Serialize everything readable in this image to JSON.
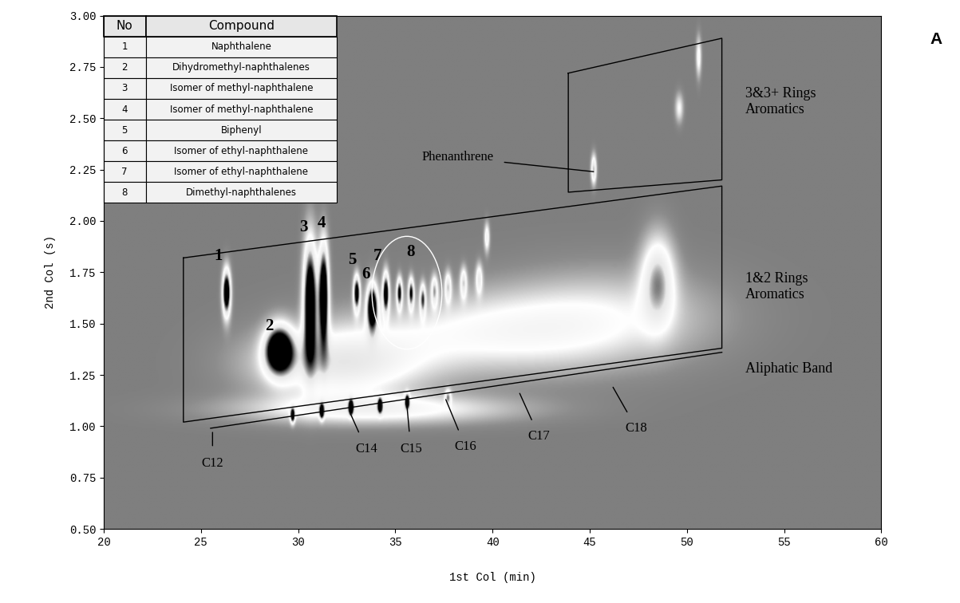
{
  "chart_data": {
    "type": "contour",
    "panel_label": "A",
    "x_label": "1st Col (min)",
    "y_label": "2nd Col (s)",
    "xlim": [
      20,
      60
    ],
    "ylim": [
      0.5,
      3.0
    ],
    "xticks": [
      20,
      25,
      30,
      35,
      40,
      45,
      50,
      55,
      60
    ],
    "yticks": [
      {
        "value": 0.5,
        "label": "0.50"
      },
      {
        "value": 0.75,
        "label": "0.75"
      },
      {
        "value": 1.0,
        "label": "1.00"
      },
      {
        "value": 1.25,
        "label": "1.25"
      },
      {
        "value": 1.5,
        "label": "1.50"
      },
      {
        "value": 1.75,
        "label": "1.75"
      },
      {
        "value": 2.0,
        "label": "2.00"
      },
      {
        "value": 2.25,
        "label": "2.25"
      },
      {
        "value": 2.5,
        "label": "2.50"
      },
      {
        "value": 2.75,
        "label": "2.75"
      },
      {
        "value": 3.0,
        "label": "3.00"
      }
    ],
    "table": {
      "header": [
        "No",
        "Compound"
      ],
      "rows": [
        [
          "1",
          "Naphthalene"
        ],
        [
          "2",
          "Dihydromethyl-naphthalenes"
        ],
        [
          "3",
          "Isomer of methyl-naphthalene"
        ],
        [
          "4",
          "Isomer of methyl-naphthalene"
        ],
        [
          "5",
          "Biphenyl"
        ],
        [
          "6",
          "Isomer of ethyl-naphthalene"
        ],
        [
          "7",
          "Isomer of ethyl-naphthalene"
        ],
        [
          "8",
          "Dimethyl-naphthalenes"
        ]
      ]
    },
    "peaks": [
      {
        "x": 26.3,
        "y": 1.65,
        "sx": 0.15,
        "sy": 0.08,
        "intensity": 1.0
      },
      {
        "x": 29.0,
        "y": 1.37,
        "sx": 0.5,
        "sy": 0.08,
        "intensity": 1.0
      },
      {
        "x": 30.6,
        "y": 1.62,
        "sx": 0.25,
        "sy": 0.2,
        "intensity": 1.0
      },
      {
        "x": 31.3,
        "y": 1.65,
        "sx": 0.18,
        "sy": 0.17,
        "intensity": 1.0
      },
      {
        "x": 33.0,
        "y": 1.65,
        "sx": 0.12,
        "sy": 0.06,
        "intensity": 0.85
      },
      {
        "x": 33.8,
        "y": 1.58,
        "sx": 0.2,
        "sy": 0.08,
        "intensity": 0.95
      },
      {
        "x": 34.5,
        "y": 1.65,
        "sx": 0.12,
        "sy": 0.07,
        "intensity": 0.85
      },
      {
        "x": 35.2,
        "y": 1.65,
        "sx": 0.1,
        "sy": 0.05,
        "intensity": 0.75
      },
      {
        "x": 35.8,
        "y": 1.65,
        "sx": 0.1,
        "sy": 0.05,
        "intensity": 0.7
      },
      {
        "x": 36.4,
        "y": 1.62,
        "sx": 0.1,
        "sy": 0.05,
        "intensity": 0.6
      },
      {
        "x": 37.0,
        "y": 1.66,
        "sx": 0.12,
        "sy": 0.05,
        "intensity": 0.5
      },
      {
        "x": 37.7,
        "y": 1.68,
        "sx": 0.12,
        "sy": 0.05,
        "intensity": 0.45
      },
      {
        "x": 38.5,
        "y": 1.7,
        "sx": 0.12,
        "sy": 0.05,
        "intensity": 0.45
      },
      {
        "x": 39.3,
        "y": 1.72,
        "sx": 0.12,
        "sy": 0.05,
        "intensity": 0.4
      },
      {
        "x": 39.7,
        "y": 1.92,
        "sx": 0.1,
        "sy": 0.05,
        "intensity": 0.4
      },
      {
        "x": 32.0,
        "y": 1.3,
        "sx": 3.0,
        "sy": 0.12,
        "intensity": 0.45
      },
      {
        "x": 40.0,
        "y": 1.45,
        "sx": 5.0,
        "sy": 0.14,
        "intensity": 0.3
      },
      {
        "x": 46.0,
        "y": 1.55,
        "sx": 4.0,
        "sy": 0.16,
        "intensity": 0.2
      },
      {
        "x": 48.5,
        "y": 1.72,
        "sx": 0.6,
        "sy": 0.15,
        "intensity": 0.5
      },
      {
        "x": 45.2,
        "y": 2.25,
        "sx": 0.1,
        "sy": 0.05,
        "intensity": 0.55
      },
      {
        "x": 49.6,
        "y": 2.55,
        "sx": 0.15,
        "sy": 0.05,
        "intensity": 0.3
      },
      {
        "x": 50.6,
        "y": 2.8,
        "sx": 0.1,
        "sy": 0.07,
        "intensity": 0.35
      },
      {
        "x": 34.0,
        "y": 1.08,
        "sx": 5.0,
        "sy": 0.05,
        "intensity": 0.35
      },
      {
        "x": 29.7,
        "y": 1.05,
        "sx": 0.08,
        "sy": 0.025,
        "intensity": 0.8
      },
      {
        "x": 31.2,
        "y": 1.07,
        "sx": 0.08,
        "sy": 0.025,
        "intensity": 0.8
      },
      {
        "x": 32.7,
        "y": 1.09,
        "sx": 0.08,
        "sy": 0.025,
        "intensity": 0.85
      },
      {
        "x": 34.2,
        "y": 1.1,
        "sx": 0.08,
        "sy": 0.025,
        "intensity": 0.75
      },
      {
        "x": 35.6,
        "y": 1.12,
        "sx": 0.08,
        "sy": 0.025,
        "intensity": 0.75
      },
      {
        "x": 37.7,
        "y": 1.14,
        "sx": 0.1,
        "sy": 0.025,
        "intensity": 0.45
      }
    ],
    "compound_labels": [
      {
        "label": "1",
        "x": 25.9,
        "y": 1.79
      },
      {
        "label": "2",
        "x": 28.5,
        "y": 1.45
      },
      {
        "label": "3",
        "x": 30.3,
        "y": 1.93
      },
      {
        "label": "4",
        "x": 31.2,
        "y": 1.95
      },
      {
        "label": "5",
        "x": 32.8,
        "y": 1.77
      },
      {
        "label": "6",
        "x": 33.5,
        "y": 1.7
      },
      {
        "label": "7",
        "x": 34.1,
        "y": 1.79
      },
      {
        "label": "8",
        "x": 35.8,
        "y": 1.81
      }
    ],
    "group_outline": {
      "x": 35.6,
      "y": 1.65,
      "width": 3.6,
      "height": 0.55
    },
    "regions": [
      {
        "label": "3&3+ Rings\nAromatics",
        "x": [
          43.9,
          51.8,
          51.8,
          43.9
        ],
        "y": [
          2.72,
          2.89,
          2.2,
          2.14
        ],
        "label_x": 53.0,
        "label_y": 2.58
      },
      {
        "label": "1&2 Rings\nAromatics",
        "x": [
          24.1,
          51.8,
          51.8,
          24.1
        ],
        "y": [
          1.82,
          2.17,
          1.38,
          1.02
        ],
        "label_x": 53.0,
        "label_y": 1.68
      }
    ],
    "band": {
      "label": "Aliphatic Band",
      "x": [
        25.5,
        51.8
      ],
      "y": [
        0.99,
        1.36
      ],
      "label_x": 53.0,
      "label_y": 1.28
    },
    "annotations": [
      {
        "text": "Phenanthrene",
        "x": 45.2,
        "y": 2.24,
        "text_x": 38.2,
        "text_y": 2.31
      },
      {
        "text": "C12",
        "x": 25.6,
        "y": 0.97,
        "text_x": 25.6,
        "text_y": 0.82
      },
      {
        "text": "C14",
        "x": 32.7,
        "y": 1.06,
        "text_x": 33.5,
        "text_y": 0.89
      },
      {
        "text": "C15",
        "x": 35.6,
        "y": 1.1,
        "text_x": 35.8,
        "text_y": 0.89
      },
      {
        "text": "C16",
        "x": 37.6,
        "y": 1.13,
        "text_x": 38.6,
        "text_y": 0.9
      },
      {
        "text": "C17",
        "x": 41.4,
        "y": 1.16,
        "text_x": 42.4,
        "text_y": 0.95
      },
      {
        "text": "C18",
        "x": 46.2,
        "y": 1.19,
        "text_x": 47.4,
        "text_y": 0.99
      }
    ]
  }
}
